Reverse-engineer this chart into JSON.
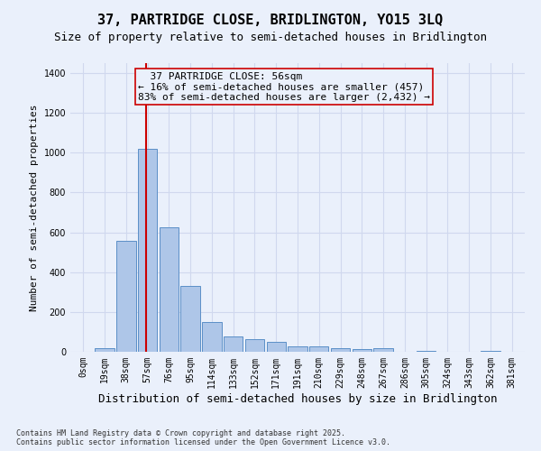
{
  "title": "37, PARTRIDGE CLOSE, BRIDLINGTON, YO15 3LQ",
  "subtitle": "Size of property relative to semi-detached houses in Bridlington",
  "xlabel": "Distribution of semi-detached houses by size in Bridlington",
  "ylabel": "Number of semi-detached properties",
  "footnote": "Contains HM Land Registry data © Crown copyright and database right 2025.\nContains public sector information licensed under the Open Government Licence v3.0.",
  "bar_labels": [
    "0sqm",
    "19sqm",
    "38sqm",
    "57sqm",
    "76sqm",
    "95sqm",
    "114sqm",
    "133sqm",
    "152sqm",
    "171sqm",
    "191sqm",
    "210sqm",
    "229sqm",
    "248sqm",
    "267sqm",
    "286sqm",
    "305sqm",
    "324sqm",
    "343sqm",
    "362sqm",
    "381sqm"
  ],
  "bar_values": [
    0,
    20,
    557,
    1020,
    625,
    330,
    150,
    75,
    65,
    52,
    28,
    28,
    20,
    12,
    17,
    0,
    5,
    0,
    0,
    5,
    0
  ],
  "bar_color": "#aec6e8",
  "bar_edge_color": "#5b8fc7",
  "annotation_text": "  37 PARTRIDGE CLOSE: 56sqm\n← 16% of semi-detached houses are smaller (457)\n83% of semi-detached houses are larger (2,432) →",
  "vline_x_index": 2.95,
  "vline_color": "#cc0000",
  "annotation_box_color": "#cc0000",
  "ylim": [
    0,
    1450
  ],
  "background_color": "#eaf0fb",
  "grid_color": "#d0d8ee",
  "title_fontsize": 11,
  "subtitle_fontsize": 9,
  "annotation_fontsize": 8,
  "axis_tick_fontsize": 7,
  "ylabel_fontsize": 8,
  "xlabel_fontsize": 9,
  "footnote_fontsize": 6
}
